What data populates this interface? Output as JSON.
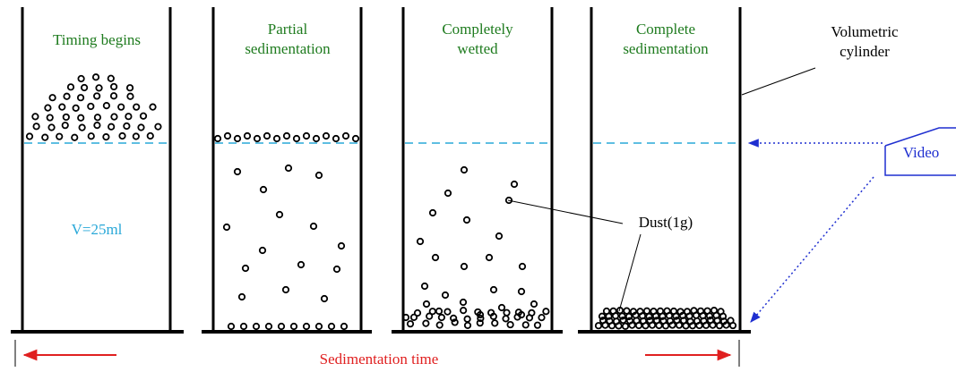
{
  "stages": [
    {
      "label": [
        "Timing begins"
      ]
    },
    {
      "label": [
        "Partial",
        "sedimentation"
      ]
    },
    {
      "label": [
        "Completely",
        "wetted"
      ]
    },
    {
      "label": [
        "Complete",
        "sedimentation"
      ]
    }
  ],
  "volume_label": "V=25ml",
  "dust_label": "Dust(1g)",
  "cylinder_label": [
    "Volumetric",
    "cylinder"
  ],
  "video_label": "Video",
  "time_label": "Sedimentation time"
}
